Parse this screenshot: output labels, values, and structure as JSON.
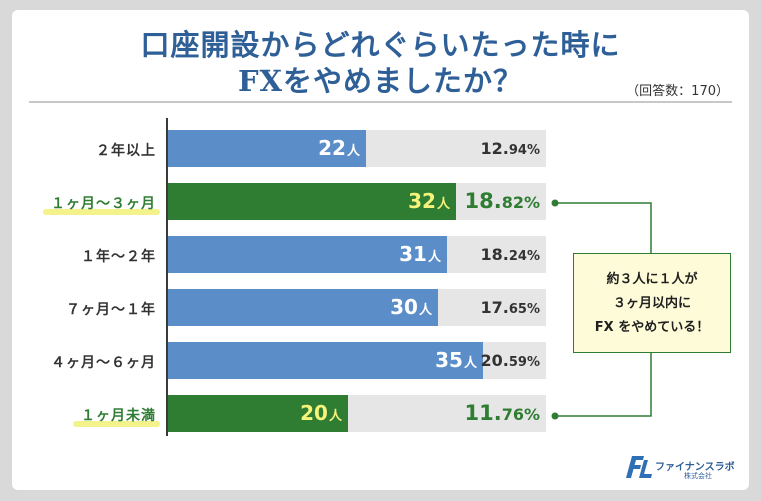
{
  "title_line1": "口座開設からどれぐらいたった時に",
  "title_line2": "FXをやめましたか？",
  "sample_note": "（回答数：170）",
  "callout": {
    "line1": "約３人に１人が",
    "line2": "３ヶ月以内に",
    "line3": "FX をやめている！"
  },
  "logo": {
    "name": "ファイナンスラボ",
    "sub": "株式会社"
  },
  "colors": {
    "normal": "#5b8dc8",
    "highlight": "#2e7d32",
    "title": "#2f5f97",
    "marker": "#f4f28a"
  },
  "chart_data": {
    "type": "bar",
    "orientation": "horizontal",
    "title": "口座開設からどれぐらいたった時にFXをやめましたか？",
    "total": 170,
    "unit": "人",
    "categories": [
      "２年以上",
      "１ヶ月〜３ヶ月",
      "１年〜２年",
      "７ヶ月〜１年",
      "４ヶ月〜６ヶ月",
      "１ヶ月未満"
    ],
    "values": [
      22,
      32,
      31,
      30,
      35,
      20
    ],
    "percent_int": [
      "12.",
      "18.",
      "18.",
      "17.",
      "20.",
      "11."
    ],
    "percent_dec": [
      "94%",
      "82%",
      "24%",
      "65%",
      "59%",
      "76%"
    ],
    "percentages": [
      12.94,
      18.82,
      18.24,
      17.65,
      20.59,
      11.76
    ],
    "highlighted": [
      false,
      true,
      false,
      false,
      false,
      true
    ],
    "xlim": [
      0,
      42
    ],
    "grid": false,
    "legend": "none"
  }
}
